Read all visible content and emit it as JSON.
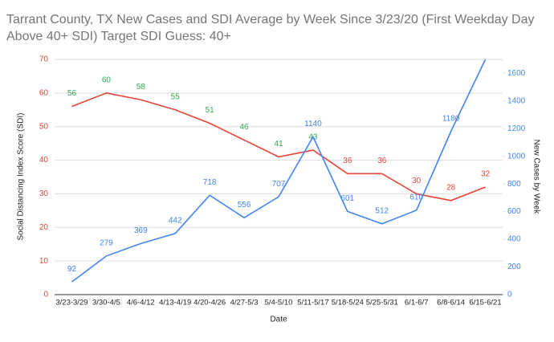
{
  "chart_data": {
    "type": "line",
    "title": "Tarrant County, TX New Cases and SDI Average by Week Since 3/23/20 (First Weekday Day Above 40+ SDI) Target SDI Guess: 40+",
    "x_label": "Date",
    "y_label": "Social Distancing Index Score (SDI)",
    "y2_label": "New Cases by Week",
    "categories": [
      "3/23-3/29",
      "3/30-4/5",
      "4/6-4/12",
      "4/13-4/19",
      "4/20-4/26",
      "4/27-5/3",
      "5/4-5/10",
      "5/11-5/17",
      "5/18-5/24",
      "5/25-5/31",
      "6/1-6/7",
      "6/8-6/14",
      "6/15-6/21"
    ],
    "series": [
      {
        "name": "SDI",
        "color": "#ea4335",
        "values": [
          56,
          60,
          58,
          55,
          51,
          46,
          41,
          43,
          36,
          36,
          30,
          28,
          32
        ],
        "label_colors": [
          "#34a853",
          "#34a853",
          "#34a853",
          "#34a853",
          "#34a853",
          "#34a853",
          "#34a853",
          "#34a853",
          "#ea4335",
          "#ea4335",
          "#ea4335",
          "#ea4335",
          "#ea4335"
        ]
      },
      {
        "name": "New Cases",
        "color": "#4285f4",
        "axis": "y2",
        "values": [
          92,
          279,
          369,
          442,
          718,
          556,
          707,
          1140,
          601,
          512,
          610,
          1180,
          1700
        ],
        "value_labels": [
          "92",
          "279",
          "369",
          "442",
          "718",
          "556",
          "707",
          "1140",
          "601",
          "512",
          "610",
          "1180",
          null
        ]
      }
    ],
    "ylim": [
      0,
      70
    ],
    "yticks": [
      0,
      10,
      20,
      30,
      40,
      50,
      60,
      70
    ],
    "y2lim": [
      0,
      1700
    ],
    "y2ticks": [
      0,
      200,
      400,
      600,
      800,
      1000,
      1200,
      1400,
      1600
    ],
    "grid": true
  }
}
